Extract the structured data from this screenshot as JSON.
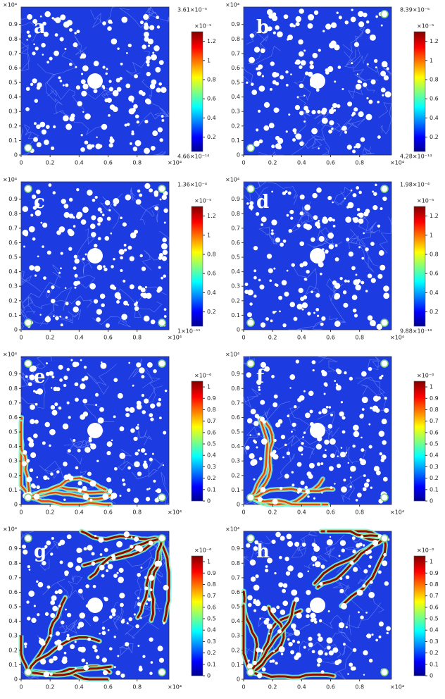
{
  "panels": [
    {
      "label": "a",
      "xticks": [
        0,
        0.2,
        0.4,
        0.6,
        0.8
      ],
      "yticks": [
        0,
        0.1,
        0.2,
        0.3,
        0.4,
        0.5,
        0.6,
        0.7,
        0.8,
        0.9
      ],
      "x_exponent": "×10⁴",
      "y_exponent": "×10⁴",
      "colorbar": {
        "clim": [
          0.05,
          1.3
        ],
        "ticks": [
          0.2,
          0.4,
          0.6,
          0.8,
          1,
          1.2
        ],
        "exponent": "×10⁻⁵",
        "max_label": "3.61×10⁻⁵",
        "min_label": "4.66×10⁻¹⁴"
      }
    },
    {
      "label": "b",
      "xticks": [
        0,
        0.2,
        0.4,
        0.6,
        0.8
      ],
      "yticks": [
        0,
        0.1,
        0.2,
        0.3,
        0.4,
        0.5,
        0.6,
        0.7,
        0.8,
        0.9
      ],
      "x_exponent": "×10⁴",
      "y_exponent": "×10⁴",
      "colorbar": {
        "clim": [
          0.05,
          1.3
        ],
        "ticks": [
          0.2,
          0.4,
          0.6,
          0.8,
          1,
          1.2
        ],
        "exponent": "×10⁻⁵",
        "max_label": "8.39×10⁻⁵",
        "min_label": "4.28×10⁻¹⁴"
      }
    },
    {
      "label": "c",
      "xticks": [
        0,
        0.2,
        0.4,
        0.6,
        0.8
      ],
      "yticks": [
        0,
        0.1,
        0.2,
        0.3,
        0.4,
        0.5,
        0.6,
        0.7,
        0.8,
        0.9
      ],
      "x_exponent": "×10⁴",
      "y_exponent": "×10⁴",
      "colorbar": {
        "clim": [
          0.05,
          1.3
        ],
        "ticks": [
          0.2,
          0.4,
          0.6,
          0.8,
          1,
          1.2
        ],
        "exponent": "×10⁻⁵",
        "max_label": "1.36×10⁻⁴",
        "min_label": "1×10⁻¹¹"
      }
    },
    {
      "label": "d",
      "xticks": [
        0,
        0.2,
        0.4,
        0.6,
        0.8
      ],
      "yticks": [
        0,
        0.1,
        0.2,
        0.3,
        0.4,
        0.5,
        0.6,
        0.7,
        0.8,
        0.9
      ],
      "x_exponent": "×10⁴",
      "y_exponent": "×10⁴",
      "colorbar": {
        "clim": [
          0.05,
          1.3
        ],
        "ticks": [
          0.2,
          0.4,
          0.6,
          0.8,
          1,
          1.2
        ],
        "exponent": "×10⁻⁵",
        "max_label": "1.98×10⁻⁴",
        "min_label": "9.88×10⁻¹³"
      }
    },
    {
      "label": "e",
      "xticks": [
        0,
        0.2,
        0.4,
        0.6,
        0.8
      ],
      "yticks": [
        0,
        0.1,
        0.2,
        0.3,
        0.4,
        0.5,
        0.6,
        0.7,
        0.8,
        0.9
      ],
      "x_exponent": "×10⁴",
      "y_exponent": "×10⁴",
      "colorbar": {
        "clim": [
          0,
          1.05
        ],
        "ticks": [
          0,
          0.1,
          0.2,
          0.3,
          0.4,
          0.5,
          0.6,
          0.7,
          0.8,
          0.9,
          1
        ],
        "exponent": "×10⁻⁶"
      }
    },
    {
      "label": "f",
      "xticks": [
        0,
        0.2,
        0.4,
        0.6,
        0.8
      ],
      "yticks": [
        0,
        0.1,
        0.2,
        0.3,
        0.4,
        0.5,
        0.6,
        0.7,
        0.8,
        0.9
      ],
      "x_exponent": "×10⁴",
      "y_exponent": "×10⁴",
      "colorbar": {
        "clim": [
          0,
          1.05
        ],
        "ticks": [
          0,
          0.1,
          0.2,
          0.3,
          0.4,
          0.5,
          0.6,
          0.7,
          0.8,
          0.9,
          1
        ],
        "exponent": "×10⁻⁶"
      }
    },
    {
      "label": "g",
      "xticks": [
        0,
        0.2,
        0.4,
        0.6,
        0.8
      ],
      "yticks": [
        0,
        0.1,
        0.2,
        0.3,
        0.4,
        0.5,
        0.6,
        0.7,
        0.8,
        0.9
      ],
      "x_exponent": "×10⁴",
      "y_exponent": "×10⁴",
      "colorbar": {
        "clim": [
          0,
          1.05
        ],
        "ticks": [
          0,
          0.1,
          0.2,
          0.3,
          0.4,
          0.5,
          0.6,
          0.7,
          0.8,
          0.9,
          1
        ],
        "exponent": "×10⁻⁶"
      }
    },
    {
      "label": "h",
      "xticks": [
        0,
        0.2,
        0.4,
        0.6,
        0.8
      ],
      "yticks": [
        0,
        0.1,
        0.2,
        0.3,
        0.4,
        0.5,
        0.6,
        0.7,
        0.8,
        0.9
      ],
      "x_exponent": "×10⁴",
      "y_exponent": "×10⁴",
      "colorbar": {
        "clim": [
          0,
          1.05
        ],
        "ticks": [
          0,
          0.1,
          0.2,
          0.3,
          0.4,
          0.5,
          0.6,
          0.7,
          0.8,
          0.9,
          1
        ],
        "exponent": "×10⁻⁶"
      }
    }
  ]
}
